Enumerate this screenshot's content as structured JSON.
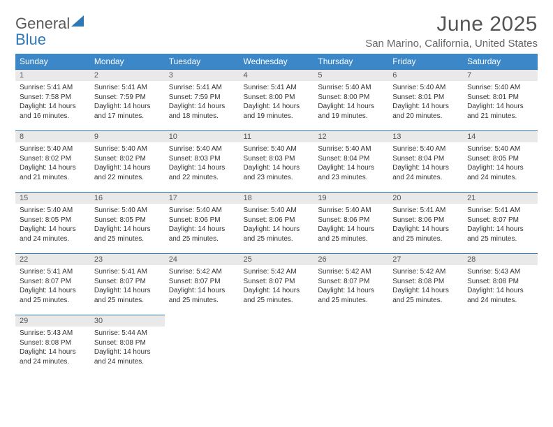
{
  "brand": {
    "word1": "General",
    "word2": "Blue"
  },
  "title": "June 2025",
  "location": "San Marino, California, United States",
  "colors": {
    "header_bg": "#3b87c8",
    "row_border": "#2f78b7",
    "daynum_bg": "#e9e9e9",
    "text": "#333333",
    "title_text": "#555555"
  },
  "fonts": {
    "title_size": 30,
    "location_size": 15,
    "header_size": 12,
    "body_size": 10
  },
  "weekdays": [
    "Sunday",
    "Monday",
    "Tuesday",
    "Wednesday",
    "Thursday",
    "Friday",
    "Saturday"
  ],
  "days": [
    {
      "n": "1",
      "sunrise": "5:41 AM",
      "sunset": "7:58 PM",
      "dl": "14 hours and 16 minutes."
    },
    {
      "n": "2",
      "sunrise": "5:41 AM",
      "sunset": "7:59 PM",
      "dl": "14 hours and 17 minutes."
    },
    {
      "n": "3",
      "sunrise": "5:41 AM",
      "sunset": "7:59 PM",
      "dl": "14 hours and 18 minutes."
    },
    {
      "n": "4",
      "sunrise": "5:41 AM",
      "sunset": "8:00 PM",
      "dl": "14 hours and 19 minutes."
    },
    {
      "n": "5",
      "sunrise": "5:40 AM",
      "sunset": "8:00 PM",
      "dl": "14 hours and 19 minutes."
    },
    {
      "n": "6",
      "sunrise": "5:40 AM",
      "sunset": "8:01 PM",
      "dl": "14 hours and 20 minutes."
    },
    {
      "n": "7",
      "sunrise": "5:40 AM",
      "sunset": "8:01 PM",
      "dl": "14 hours and 21 minutes."
    },
    {
      "n": "8",
      "sunrise": "5:40 AM",
      "sunset": "8:02 PM",
      "dl": "14 hours and 21 minutes."
    },
    {
      "n": "9",
      "sunrise": "5:40 AM",
      "sunset": "8:02 PM",
      "dl": "14 hours and 22 minutes."
    },
    {
      "n": "10",
      "sunrise": "5:40 AM",
      "sunset": "8:03 PM",
      "dl": "14 hours and 22 minutes."
    },
    {
      "n": "11",
      "sunrise": "5:40 AM",
      "sunset": "8:03 PM",
      "dl": "14 hours and 23 minutes."
    },
    {
      "n": "12",
      "sunrise": "5:40 AM",
      "sunset": "8:04 PM",
      "dl": "14 hours and 23 minutes."
    },
    {
      "n": "13",
      "sunrise": "5:40 AM",
      "sunset": "8:04 PM",
      "dl": "14 hours and 24 minutes."
    },
    {
      "n": "14",
      "sunrise": "5:40 AM",
      "sunset": "8:05 PM",
      "dl": "14 hours and 24 minutes."
    },
    {
      "n": "15",
      "sunrise": "5:40 AM",
      "sunset": "8:05 PM",
      "dl": "14 hours and 24 minutes."
    },
    {
      "n": "16",
      "sunrise": "5:40 AM",
      "sunset": "8:05 PM",
      "dl": "14 hours and 25 minutes."
    },
    {
      "n": "17",
      "sunrise": "5:40 AM",
      "sunset": "8:06 PM",
      "dl": "14 hours and 25 minutes."
    },
    {
      "n": "18",
      "sunrise": "5:40 AM",
      "sunset": "8:06 PM",
      "dl": "14 hours and 25 minutes."
    },
    {
      "n": "19",
      "sunrise": "5:40 AM",
      "sunset": "8:06 PM",
      "dl": "14 hours and 25 minutes."
    },
    {
      "n": "20",
      "sunrise": "5:41 AM",
      "sunset": "8:06 PM",
      "dl": "14 hours and 25 minutes."
    },
    {
      "n": "21",
      "sunrise": "5:41 AM",
      "sunset": "8:07 PM",
      "dl": "14 hours and 25 minutes."
    },
    {
      "n": "22",
      "sunrise": "5:41 AM",
      "sunset": "8:07 PM",
      "dl": "14 hours and 25 minutes."
    },
    {
      "n": "23",
      "sunrise": "5:41 AM",
      "sunset": "8:07 PM",
      "dl": "14 hours and 25 minutes."
    },
    {
      "n": "24",
      "sunrise": "5:42 AM",
      "sunset": "8:07 PM",
      "dl": "14 hours and 25 minutes."
    },
    {
      "n": "25",
      "sunrise": "5:42 AM",
      "sunset": "8:07 PM",
      "dl": "14 hours and 25 minutes."
    },
    {
      "n": "26",
      "sunrise": "5:42 AM",
      "sunset": "8:07 PM",
      "dl": "14 hours and 25 minutes."
    },
    {
      "n": "27",
      "sunrise": "5:42 AM",
      "sunset": "8:08 PM",
      "dl": "14 hours and 25 minutes."
    },
    {
      "n": "28",
      "sunrise": "5:43 AM",
      "sunset": "8:08 PM",
      "dl": "14 hours and 24 minutes."
    },
    {
      "n": "29",
      "sunrise": "5:43 AM",
      "sunset": "8:08 PM",
      "dl": "14 hours and 24 minutes."
    },
    {
      "n": "30",
      "sunrise": "5:44 AM",
      "sunset": "8:08 PM",
      "dl": "14 hours and 24 minutes."
    }
  ],
  "labels": {
    "sunrise_prefix": "Sunrise: ",
    "sunset_prefix": "Sunset: ",
    "daylight_prefix": "Daylight: "
  },
  "grid": {
    "rows": 5,
    "cols": 7,
    "start_offset": 0,
    "total_cells": 35
  }
}
